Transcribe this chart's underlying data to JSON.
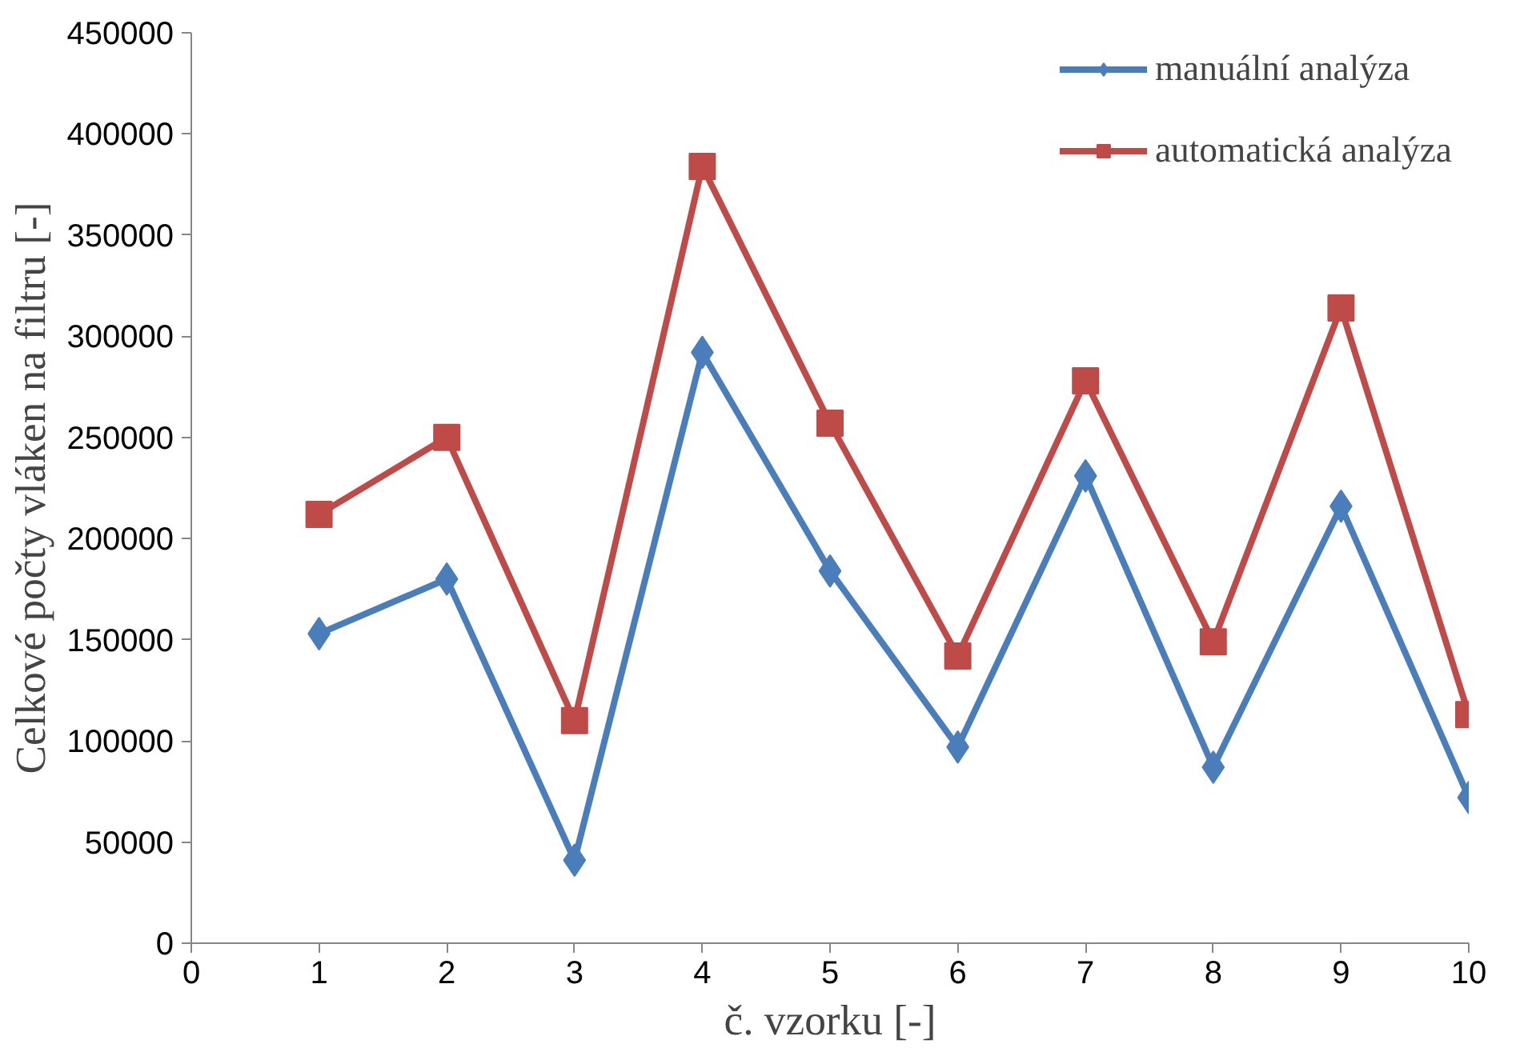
{
  "chart_data": {
    "type": "line",
    "xlabel": "č. vzorku [-]",
    "ylabel": "Celkové počty vláken na filtru [-]",
    "x": [
      1,
      2,
      3,
      4,
      5,
      6,
      7,
      8,
      9,
      10
    ],
    "series": [
      {
        "name": "manuální analýza",
        "color": "#4a7ebb",
        "marker": "diamond",
        "values": [
          153000,
          180000,
          41000,
          292000,
          184000,
          97000,
          231000,
          87000,
          216000,
          72000
        ]
      },
      {
        "name": "automatická analýza",
        "color": "#be4b48",
        "marker": "square",
        "values": [
          212000,
          250000,
          110000,
          384000,
          257000,
          142000,
          278000,
          149000,
          314000,
          113000
        ]
      }
    ],
    "xlim": [
      0,
      10
    ],
    "xticks": [
      0,
      1,
      2,
      3,
      4,
      5,
      6,
      7,
      8,
      9,
      10
    ],
    "ylim": [
      0,
      450000
    ],
    "yticks": [
      0,
      50000,
      100000,
      150000,
      200000,
      250000,
      300000,
      350000,
      400000,
      450000
    ],
    "grid": false,
    "legend": "top right",
    "line_style": "solid"
  }
}
